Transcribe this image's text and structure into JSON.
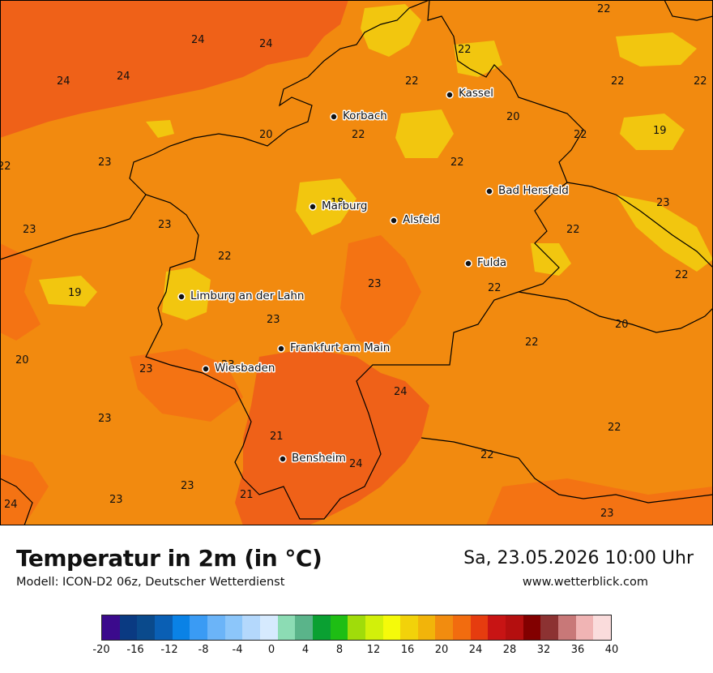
{
  "title": "Temperatur in 2m (in °C)",
  "model": "Modell: ICON-D2 06z, Deutscher Wetterdienst",
  "datetime": "Sa, 23.05.2026 10:00 Uhr",
  "website": "www.wetterblick.com",
  "colors": {
    "t18": "#f2c60f",
    "t20": "#f28a0f",
    "t22": "#f47313",
    "t24": "#ef6118",
    "border": "#000000"
  },
  "cities": [
    {
      "name": "Kassel"
    },
    {
      "name": "Korbach"
    },
    {
      "name": "Bad Hersfeld"
    },
    {
      "name": "Marburg"
    },
    {
      "name": "Alsfeld"
    },
    {
      "name": "Fulda"
    },
    {
      "name": "Limburg an der Lahn"
    },
    {
      "name": "Frankfurt am Main"
    },
    {
      "name": "Wiesbaden"
    },
    {
      "name": "Bensheim"
    }
  ],
  "values": [
    "22",
    "24",
    "24",
    "24",
    "24",
    "22",
    "22",
    "22",
    "22",
    "20",
    "22",
    "22",
    "19",
    "20",
    "22",
    "23",
    "22",
    "23",
    "18",
    "22",
    "23",
    "23",
    "22",
    "22",
    "22",
    "19",
    "23",
    "22",
    "23",
    "20",
    "20",
    "23",
    "23",
    "22",
    "24",
    "23",
    "22",
    "21",
    "24",
    "22",
    "24",
    "23",
    "21",
    "23"
  ],
  "legend": {
    "colors": [
      "#3b0a8c",
      "#0a3a82",
      "#0a4a8c",
      "#0a5fb4",
      "#0a82e6",
      "#3a9bf4",
      "#6bb4f8",
      "#8cc6fa",
      "#b4d8fc",
      "#d6eafe",
      "#8cdcb4",
      "#5ab48a",
      "#0aa032",
      "#1ebe14",
      "#a0dc0a",
      "#d2f00a",
      "#f5fa0a",
      "#f2d20a",
      "#f2b40a",
      "#f28c0f",
      "#f26c0f",
      "#e63c0f",
      "#c81414",
      "#b40f0f",
      "#820000",
      "#8c3232",
      "#c87878",
      "#f0b4b4",
      "#fadcdc"
    ],
    "ticks": [
      "-20",
      "-16",
      "-12",
      "-8",
      "-4",
      "0",
      "4",
      "8",
      "12",
      "16",
      "20",
      "24",
      "28",
      "32",
      "36",
      "40"
    ]
  }
}
